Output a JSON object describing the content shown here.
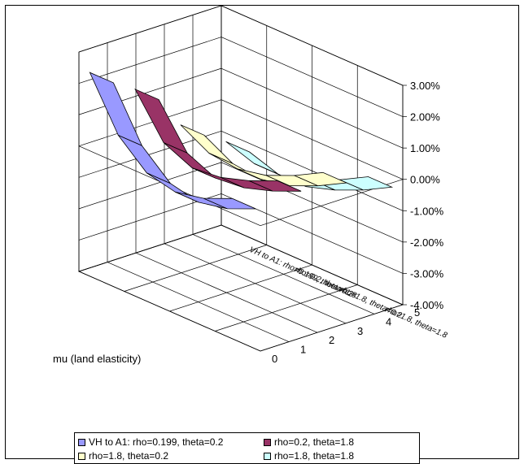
{
  "chart_data": {
    "type": "line",
    "subtype": "3d-ribbon",
    "xlabel": "mu (land elasticity)",
    "x": [
      "0",
      "1",
      "2",
      "3",
      "4",
      "5"
    ],
    "y_ticks": [
      "-4.00%",
      "-3.00%",
      "-2.00%",
      "-1.00%",
      "0.00%",
      "1.00%",
      "2.00%",
      "3.00%"
    ],
    "ylim": [
      -0.04,
      0.03
    ],
    "grid": true,
    "legend_position": "bottom",
    "series": [
      {
        "name": "VH to A1: rho=0.199, theta=0.2",
        "depth_label": "VH to A1: rho=0.199, theta=0.2",
        "color": "#9999ff",
        "values": [
          0.025,
          0.002,
          -0.013,
          -0.022,
          -0.027,
          -0.03
        ]
      },
      {
        "name": "rho=0.2, theta=1.8",
        "depth_label": "rho=0.2, theta=1.8",
        "color": "#993366",
        "values": [
          0.026,
          0.006,
          -0.005,
          -0.011,
          -0.015,
          -0.018
        ]
      },
      {
        "name": "rho=1.8, theta=0.2",
        "depth_label": "rho=1.8, theta=0.2",
        "color": "#ffffcc",
        "values": [
          0.021,
          0.009,
          0.001,
          -0.004,
          -0.007,
          -0.009
        ]
      },
      {
        "name": "rho=1.8, theta=1.8",
        "depth_label": "rho=1.8, theta=1.8",
        "color": "#ccffff",
        "values": [
          0.022,
          0.012,
          0.005,
          0.001,
          -0.002,
          -0.004
        ]
      }
    ]
  }
}
